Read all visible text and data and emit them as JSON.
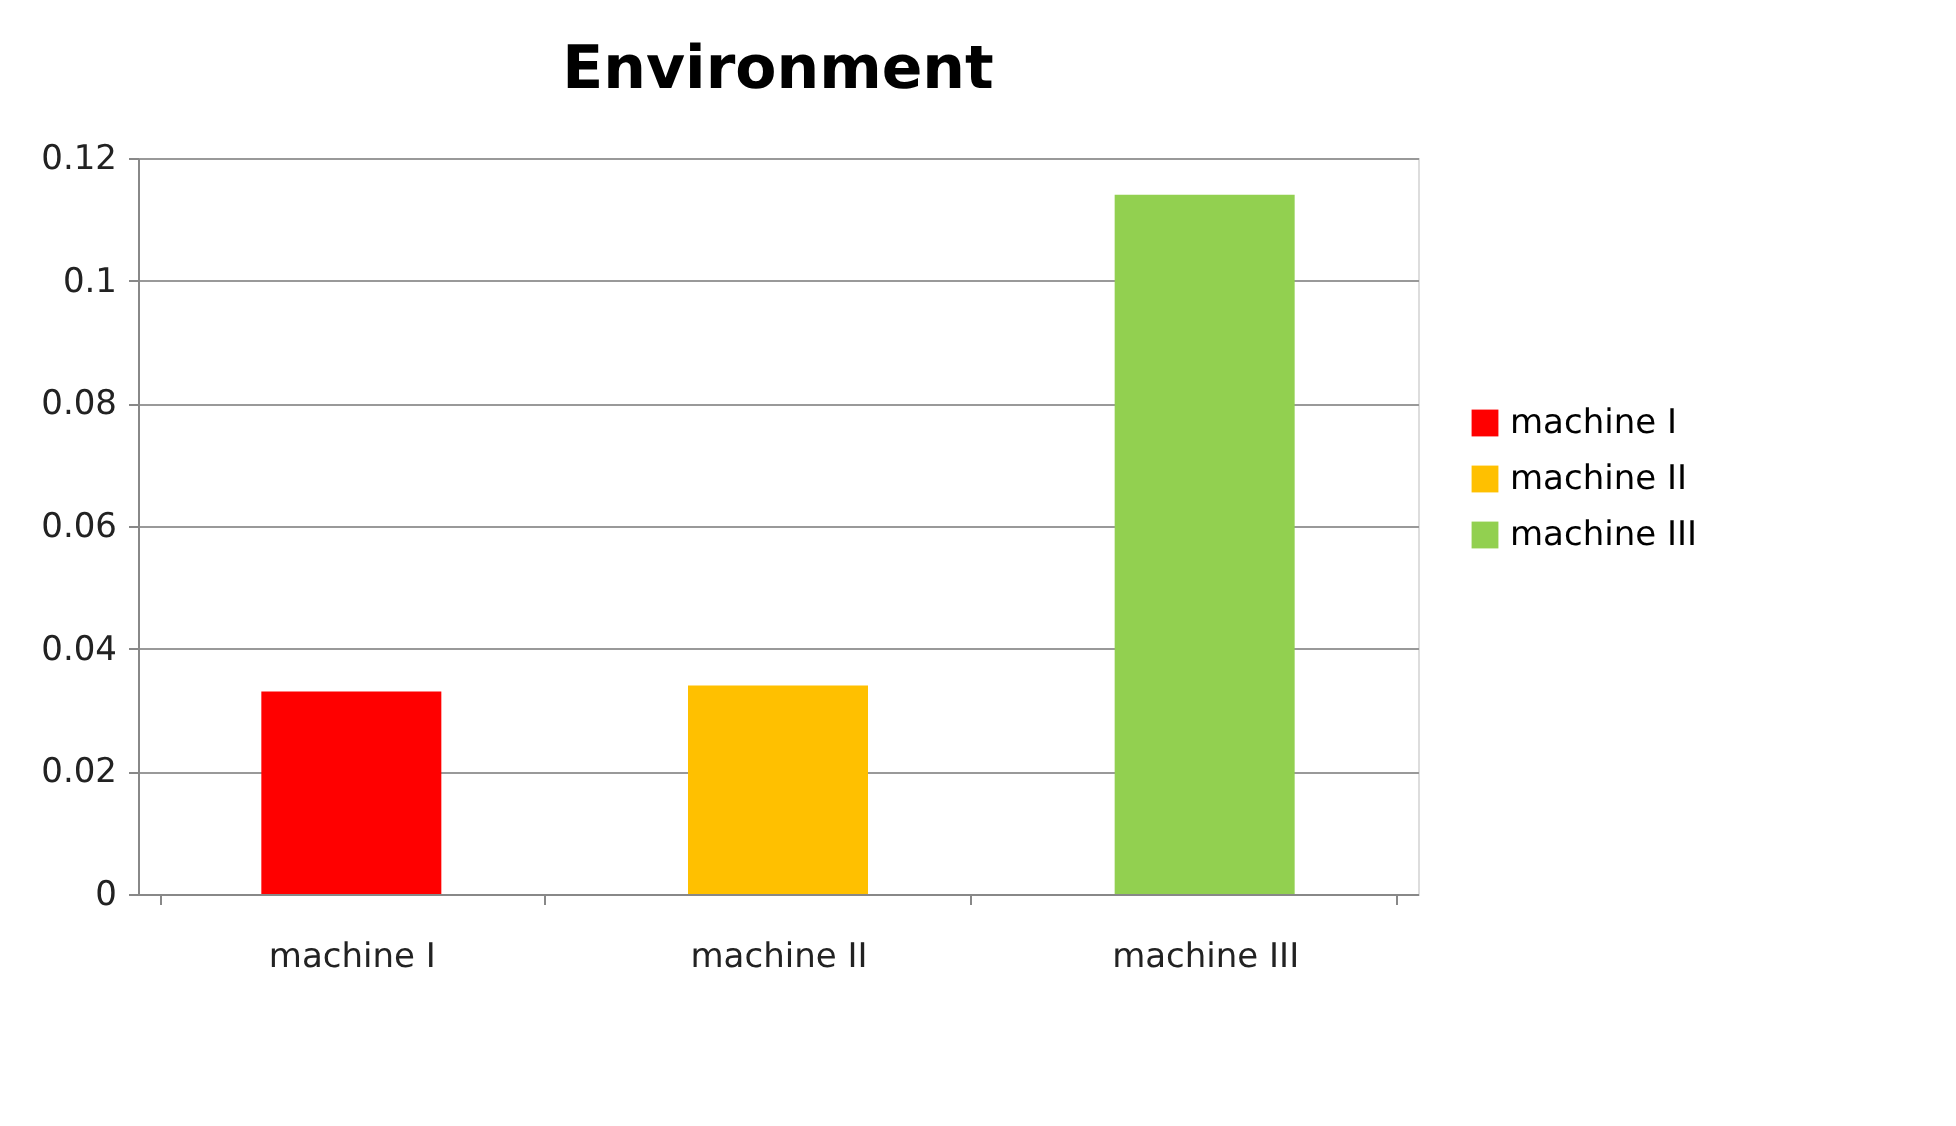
{
  "chart_data": {
    "type": "bar",
    "title": "Environment",
    "categories": [
      "machine I",
      "machine II",
      "machine III"
    ],
    "series": [
      {
        "name": "machine I",
        "color": "#ff0000",
        "values": [
          0.033,
          null,
          null
        ]
      },
      {
        "name": "machine II",
        "color": "#ffc000",
        "values": [
          null,
          0.034,
          null
        ]
      },
      {
        "name": "machine III",
        "color": "#92d050",
        "values": [
          null,
          null,
          0.114
        ]
      }
    ],
    "ylim": [
      0,
      0.12
    ],
    "yticks": [
      {
        "value": 0,
        "label": "0"
      },
      0.02,
      0.04,
      0.06,
      0.08,
      {
        "value": 0.1,
        "label": "0.1"
      },
      0.12
    ],
    "grid": "y",
    "legend": "right"
  }
}
